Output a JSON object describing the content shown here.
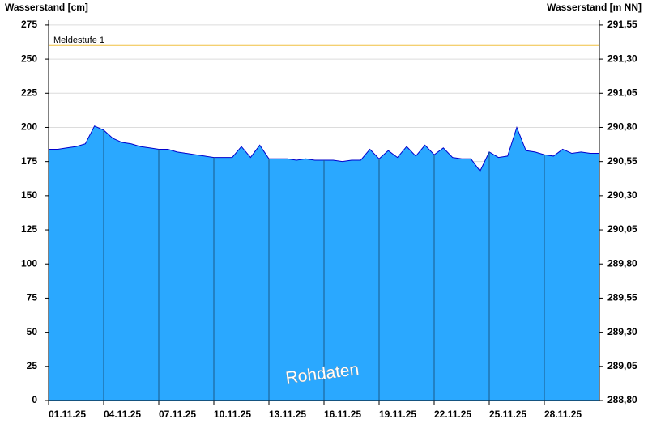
{
  "chart_data": {
    "type": "area",
    "y_label": "Wasserstand [cm]",
    "y2_label": "Wasserstand [m NN]",
    "watermark": "Rohdaten",
    "categories": [
      "01.11.25",
      null,
      null,
      null,
      null,
      null,
      "04.11.25",
      null,
      null,
      null,
      null,
      null,
      "07.11.25",
      null,
      null,
      null,
      null,
      null,
      "10.11.25",
      null,
      null,
      null,
      null,
      null,
      "13.11.25",
      null,
      null,
      null,
      null,
      null,
      "16.11.25",
      null,
      null,
      null,
      null,
      null,
      "19.11.25",
      null,
      null,
      null,
      null,
      null,
      "22.11.25",
      null,
      null,
      null,
      null,
      null,
      "25.11.25",
      null,
      null,
      null,
      null,
      null,
      "28.11.25",
      null,
      null,
      null,
      null,
      null,
      null
    ],
    "series": [
      {
        "name": "Wasserstand",
        "color": "#2aa8ff",
        "line_color": "#0000cc",
        "values": [
          184,
          184,
          185,
          186,
          188,
          201,
          198,
          192,
          189,
          188,
          186,
          185,
          184,
          184,
          182,
          181,
          180,
          179,
          178,
          178,
          178,
          186,
          178,
          187,
          177,
          177,
          177,
          176,
          177,
          176,
          176,
          176,
          175,
          176,
          176,
          184,
          177,
          183,
          178,
          186,
          179,
          187,
          180,
          185,
          178,
          177,
          177,
          168,
          182,
          178,
          179,
          200,
          183,
          182,
          180,
          179,
          184,
          181,
          182,
          181,
          181
        ]
      }
    ],
    "thresholds": [
      {
        "label": "Meldestufe 1",
        "value": 260,
        "color": "#f0c040"
      }
    ],
    "ylim": [
      0,
      278.5
    ],
    "yticks": [
      0,
      25,
      50,
      75,
      100,
      125,
      150,
      175,
      200,
      225,
      250,
      275
    ],
    "y2lim": [
      288.8,
      291.585
    ],
    "y2ticks": [
      {
        "value": 288.8,
        "label": "288,80"
      },
      {
        "value": 289.05,
        "label": "289,05"
      },
      {
        "value": 289.3,
        "label": "289,30"
      },
      {
        "value": 289.55,
        "label": "289,55"
      },
      {
        "value": 289.8,
        "label": "289,80"
      },
      {
        "value": 290.05,
        "label": "290,05"
      },
      {
        "value": 290.3,
        "label": "290,30"
      },
      {
        "value": 290.55,
        "label": "290,55"
      },
      {
        "value": 290.8,
        "label": "290,80"
      },
      {
        "value": 291.05,
        "label": "291,05"
      },
      {
        "value": 291.3,
        "label": "291,30"
      },
      {
        "value": 291.55,
        "label": "291,55"
      }
    ],
    "grid": true
  }
}
